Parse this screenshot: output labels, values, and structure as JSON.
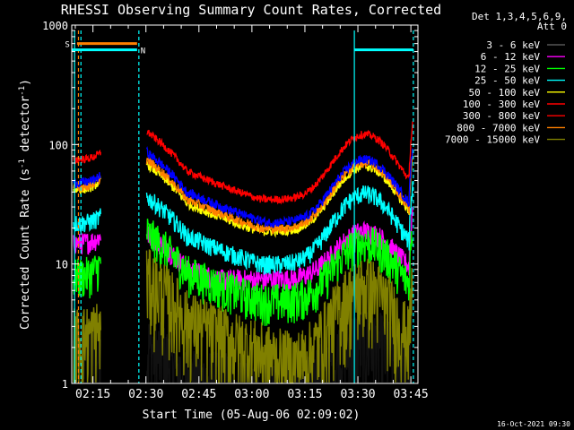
{
  "chart_data": {
    "type": "line",
    "title": "RHESSI Observing Summary Count Rates, Corrected",
    "xlabel": "Start Time (05-Aug-06 02:09:02)",
    "ylabel_main": "Corrected Count Rate (s",
    "ylabel_sup1": "-1",
    "ylabel_mid": " detector",
    "ylabel_sup2": "-1",
    "ylabel_end": ")",
    "yscale": "log",
    "xlim_minutes": [
      0,
      98
    ],
    "ylim": [
      1,
      1000
    ],
    "xticks": [
      {
        "value": 6,
        "label": "02:15"
      },
      {
        "value": 21,
        "label": "02:30"
      },
      {
        "value": 36,
        "label": "02:45"
      },
      {
        "value": 51,
        "label": "03:00"
      },
      {
        "value": 66,
        "label": "03:15"
      },
      {
        "value": 81,
        "label": "03:30"
      },
      {
        "value": 96,
        "label": "03:45"
      }
    ],
    "yticks": [
      {
        "value": 1,
        "label": "1"
      },
      {
        "value": 10,
        "label": "10"
      },
      {
        "value": 100,
        "label": "100"
      },
      {
        "value": 1000,
        "label": "1000"
      }
    ],
    "legend_header": [
      "Det 1,3,4,5,6,9,",
      "Att 0"
    ],
    "legend_placement": "right",
    "series": [
      {
        "name": "3 - 6 keV",
        "color": "#000000",
        "pre": [
          1.8,
          1.8,
          1.8
        ],
        "post_start": 2.0,
        "post_bump": 2.2,
        "post_end": 2.0,
        "noise": 0.3
      },
      {
        "name": "6 - 12 keV",
        "color": "#ff00ff",
        "pre": [
          15,
          15,
          17
        ],
        "post_start": 18,
        "post_bump": 19,
        "post_end": 15,
        "noise": 0.07
      },
      {
        "name": "12 - 25 keV",
        "color": "#00ff00",
        "pre": [
          8,
          9,
          10
        ],
        "post_start": 20,
        "post_bump": 17,
        "post_end": 10,
        "noise": 0.13
      },
      {
        "name": "25 - 50 keV",
        "color": "#00ffff",
        "pre": [
          22,
          22,
          25
        ],
        "post_start": 40,
        "post_bump": 48,
        "post_end": 20,
        "noise": 0.06
      },
      {
        "name": "50 - 100 keV",
        "color": "#ffff00",
        "pre": [
          42,
          42,
          50
        ],
        "post_start": 75,
        "post_bump": 78,
        "post_end": 38,
        "noise": 0.03
      },
      {
        "name": "100 - 300 keV",
        "color": "#ff0000",
        "pre": [
          75,
          75,
          85
        ],
        "post_start": 140,
        "post_bump": 145,
        "post_end": 70,
        "noise": 0.025
      },
      {
        "name": "300 - 800 keV",
        "color": "#ff0000",
        "pre": [
          75,
          75,
          85
        ],
        "post_start": 140,
        "post_bump": 145,
        "post_end": 70,
        "noise": 0.0
      },
      {
        "name": "800 - 7000 keV",
        "color": "#ff8000",
        "pre": [
          44,
          44,
          52
        ],
        "post_start": 82,
        "post_bump": 84,
        "post_end": 40,
        "noise": 0.03
      },
      {
        "name": "7000 - 15000 keV",
        "color": "#808000",
        "pre": [
          2.5,
          2.5,
          3.0
        ],
        "post_start": 9,
        "post_bump": 8.5,
        "post_end": 3,
        "noise": 0.25
      }
    ],
    "extra_series": [
      {
        "color": "#0000ff",
        "pre": [
          48,
          48,
          55
        ],
        "post_start": 95,
        "post_bump": 88,
        "post_end": 45,
        "noise": 0.03
      }
    ],
    "annotations": {
      "s_label": "S",
      "n_label": "N",
      "s_marker_level": 700,
      "n_marker_level": 620,
      "timestamp": "16-Oct-2021 09:30"
    }
  }
}
